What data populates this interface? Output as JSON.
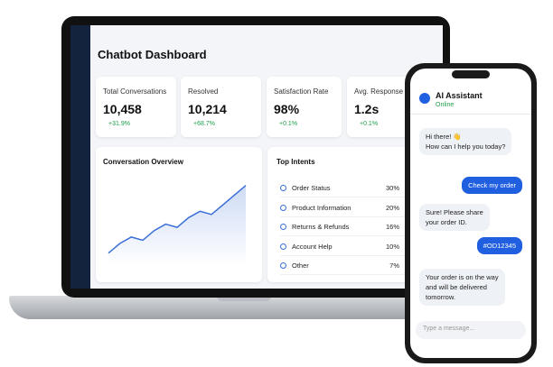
{
  "dashboard": {
    "title": "Chatbot Dashboard",
    "kpis": [
      {
        "label": "Total Conversations",
        "value": "10,458",
        "delta": "+31.9%"
      },
      {
        "label": "Resolved",
        "value": "10,214",
        "delta": "+68.7%"
      },
      {
        "label": "Satisfaction Rate",
        "value": "98%",
        "delta": "+0.1%"
      },
      {
        "label": "Avg. Response Tim",
        "value": "1.2s",
        "delta": "+0.1%"
      }
    ],
    "overview": {
      "title": "Conversation Overview",
      "values": [
        2,
        3.5,
        4.5,
        4,
        5.5,
        6.5,
        6,
        7.5,
        8.5,
        8,
        9.5,
        11,
        12.5
      ],
      "ylim": [
        0,
        14
      ]
    },
    "intents": {
      "title": "Top Intents",
      "rows": [
        {
          "name": "Order Status",
          "share": "30%"
        },
        {
          "name": "Product Information",
          "share": "20%"
        },
        {
          "name": "Returns & Refunds",
          "share": "16%"
        },
        {
          "name": "Account Help",
          "share": "10%"
        },
        {
          "name": "Other",
          "share": "7%"
        }
      ]
    }
  },
  "chat": {
    "name": "AI Assistant",
    "status": "Online",
    "messages": [
      {
        "from": "bot",
        "lines": [
          "Hi there! 👋",
          "How can I help you today?"
        ]
      },
      {
        "from": "user",
        "lines": [
          "Check my order"
        ]
      },
      {
        "from": "bot",
        "lines": [
          "Sure! Please share",
          "your order ID."
        ]
      },
      {
        "from": "user",
        "lines": [
          "#OD12345"
        ]
      },
      {
        "from": "bot",
        "lines": [
          "Your order is on the way",
          "and will be delivered",
          "tomorrow."
        ]
      }
    ],
    "placeholder": "Type a message..."
  }
}
